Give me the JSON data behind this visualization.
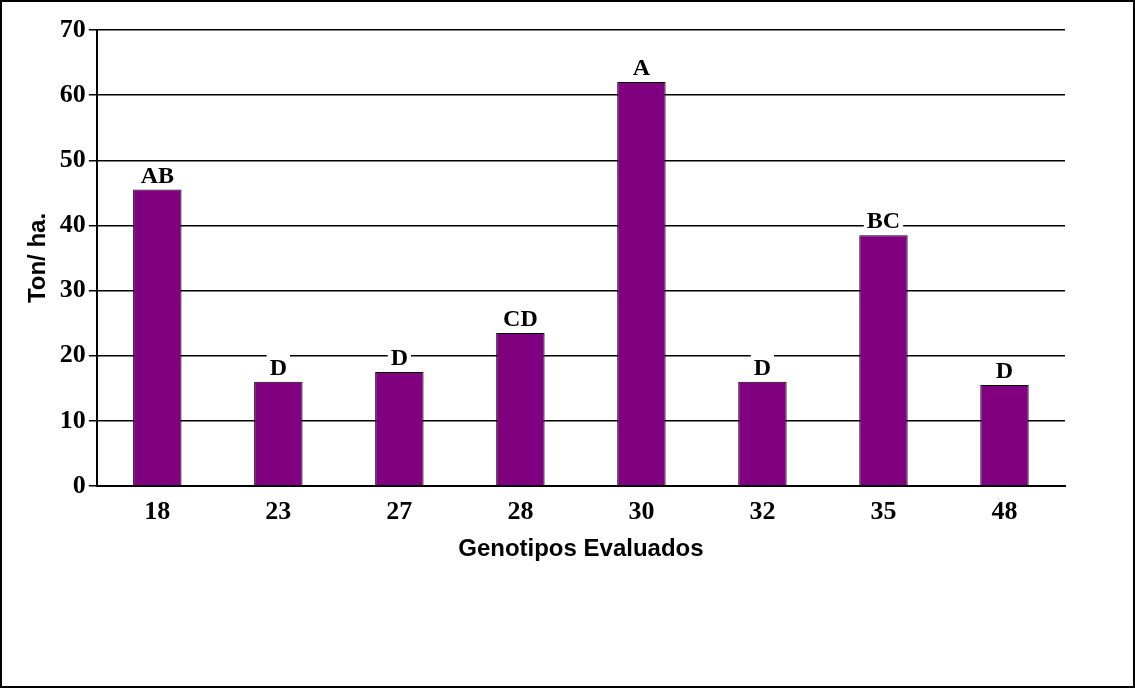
{
  "chart_data": {
    "type": "bar",
    "xlabel": "Genotipos Evaluados",
    "ylabel": "Ton/ ha.",
    "categories": [
      "18",
      "23",
      "27",
      "28",
      "30",
      "32",
      "35",
      "48"
    ],
    "values": [
      45.5,
      16,
      17.5,
      23.5,
      62,
      16,
      38.5,
      15.5
    ],
    "color": "#800080",
    "ylim": [
      0,
      70
    ],
    "yticks": [
      0,
      10,
      20,
      30,
      40,
      50,
      60,
      70
    ],
    "grid": "y",
    "annotations": [
      {
        "text": "AB",
        "x": "18",
        "y": 45.5
      },
      {
        "text": "D",
        "x": "23",
        "y": 16
      },
      {
        "text": "D",
        "x": "27",
        "y": 17.5
      },
      {
        "text": "CD",
        "x": "28",
        "y": 23.5
      },
      {
        "text": "A",
        "x": "30",
        "y": 62
      },
      {
        "text": "D",
        "x": "32",
        "y": 16
      },
      {
        "text": "BC",
        "x": "35",
        "y": 38.5
      },
      {
        "text": "D",
        "x": "48",
        "y": 15.5
      }
    ]
  }
}
